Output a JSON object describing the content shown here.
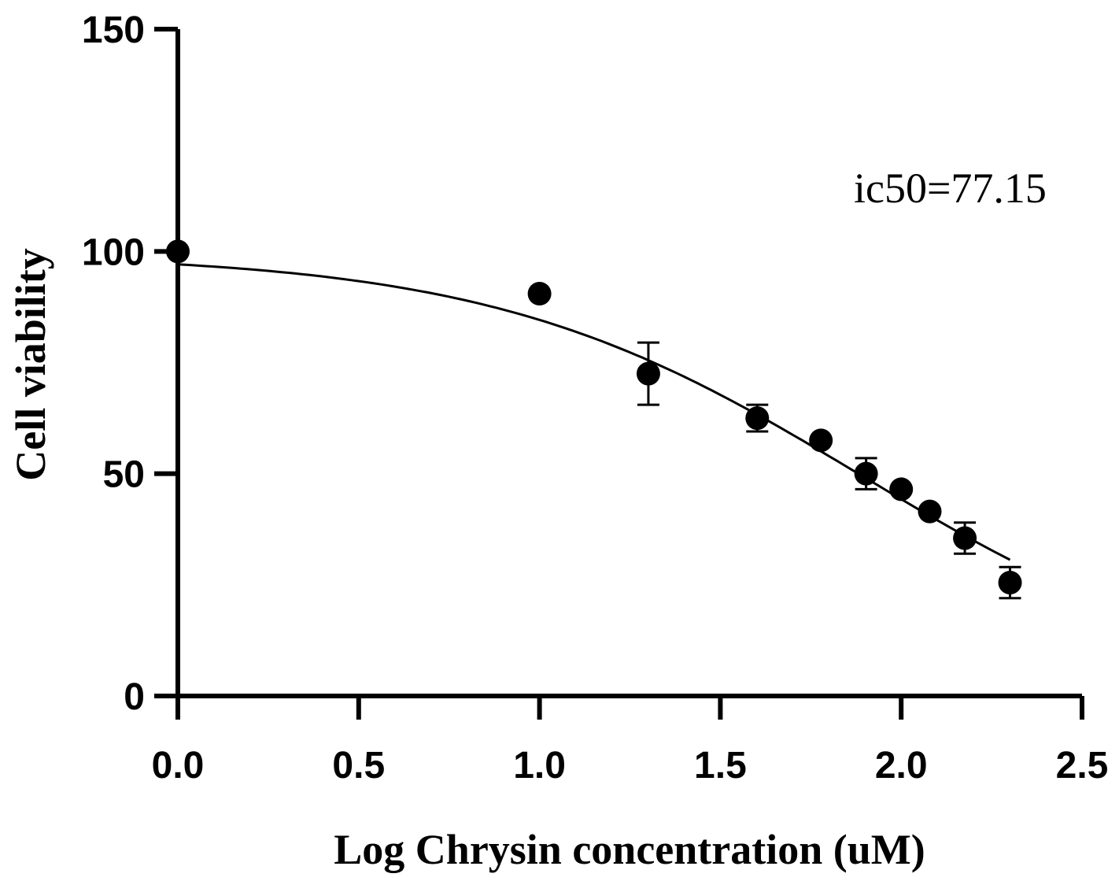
{
  "chart_data": {
    "type": "scatter",
    "title": "",
    "xlabel": "Log Chrysin concentration (uM)",
    "ylabel": "Cell viability",
    "xlim": [
      0,
      2.5
    ],
    "ylim": [
      0,
      150
    ],
    "x_ticks": [
      0,
      0.5,
      1.0,
      1.5,
      2.0,
      2.5
    ],
    "x_tick_labels": [
      "0.0",
      "0.5",
      "1.0",
      "1.5",
      "2.0",
      "2.5"
    ],
    "y_ticks": [
      0,
      50,
      100,
      150
    ],
    "y_tick_labels": [
      "0",
      "50",
      "100",
      "150"
    ],
    "grid": false,
    "annotation": "ic50=77.15",
    "series": [
      {
        "name": "Cell viability",
        "x": [
          0,
          1.0,
          1.301,
          1.602,
          1.778,
          1.903,
          2.0,
          2.079,
          2.176,
          2.301
        ],
        "y": [
          100,
          90.5,
          72.5,
          62.5,
          57.5,
          50.0,
          46.5,
          41.5,
          35.5,
          25.5
        ],
        "error": [
          0,
          0,
          7.0,
          3.0,
          0,
          3.5,
          0,
          0,
          3.5,
          3.5
        ]
      }
    ],
    "fit_curve": {
      "type": "sigmoidal dose-response",
      "top": 99.5,
      "bottom": 0,
      "log_ic50": 1.887,
      "hill_slope": -0.85,
      "x_range": [
        0,
        2.301
      ]
    }
  }
}
